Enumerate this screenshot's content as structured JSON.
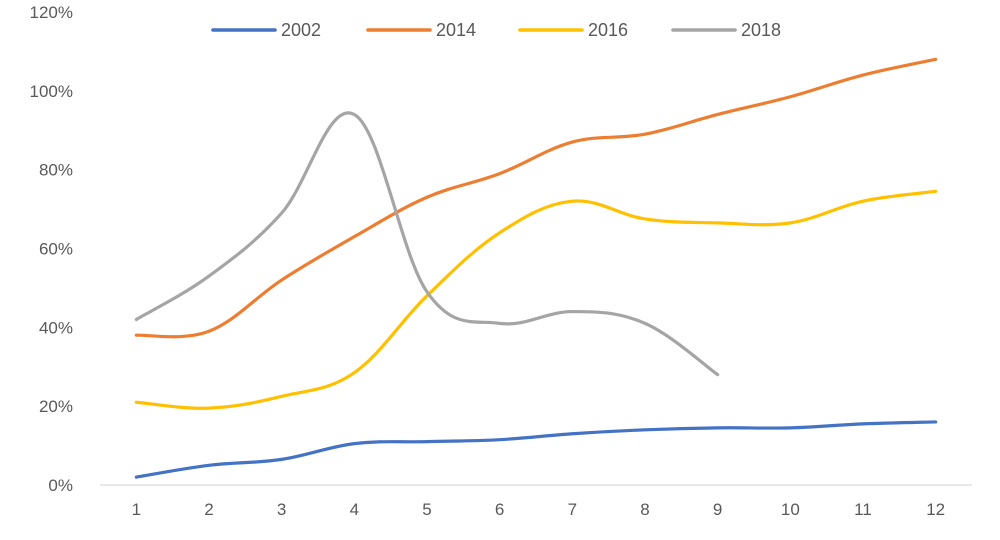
{
  "chart_data": {
    "type": "line",
    "title": "",
    "xlabel": "",
    "ylabel": "",
    "x": [
      1,
      2,
      3,
      4,
      5,
      6,
      7,
      8,
      9,
      10,
      11,
      12
    ],
    "ylim": [
      0,
      1.2
    ],
    "y_ticks": [
      "0%",
      "20%",
      "40%",
      "60%",
      "80%",
      "100%",
      "120%"
    ],
    "x_ticks": [
      "1",
      "2",
      "3",
      "4",
      "5",
      "6",
      "7",
      "8",
      "9",
      "10",
      "11",
      "12"
    ],
    "grid": false,
    "legend_position": "top",
    "series": [
      {
        "name": "2002",
        "color": "#4472c4",
        "values": [
          0.02,
          0.05,
          0.065,
          0.105,
          0.11,
          0.115,
          0.13,
          0.14,
          0.145,
          0.145,
          0.155,
          0.16
        ]
      },
      {
        "name": "2014",
        "color": "#ed7d31",
        "values": [
          0.38,
          0.39,
          0.52,
          0.63,
          0.73,
          0.79,
          0.87,
          0.89,
          0.94,
          0.985,
          1.04,
          1.08
        ]
      },
      {
        "name": "2016",
        "color": "#ffc000",
        "values": [
          0.21,
          0.195,
          0.225,
          0.285,
          0.48,
          0.64,
          0.72,
          0.675,
          0.665,
          0.665,
          0.72,
          0.745
        ]
      },
      {
        "name": "2018",
        "color": "#a5a5a5",
        "values": [
          0.42,
          0.53,
          0.69,
          0.94,
          0.49,
          0.41,
          0.44,
          0.41,
          0.28,
          null,
          null,
          null
        ]
      }
    ]
  }
}
